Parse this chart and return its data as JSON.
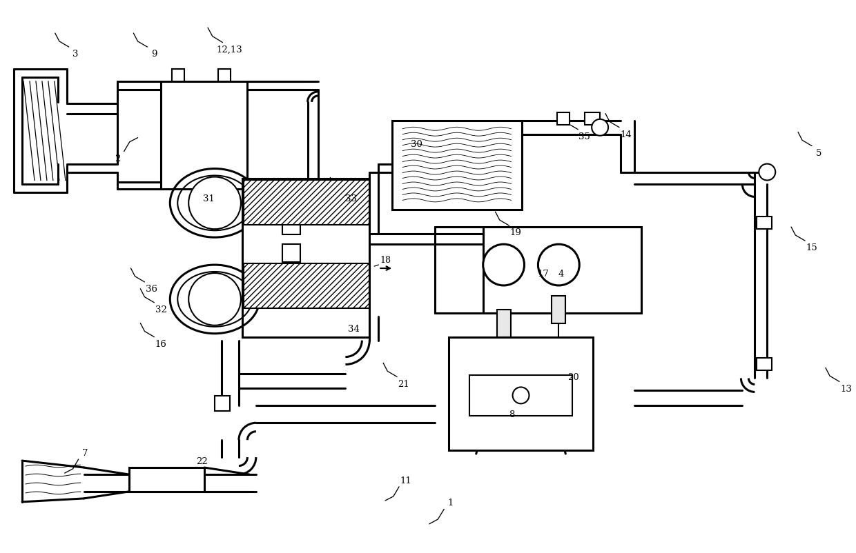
{
  "bg_color": "#ffffff",
  "line_color": "#000000",
  "lw": 1.5,
  "lw2": 2.2,
  "label_configs": {
    "3": [
      78,
      48,
      315,
      28
    ],
    "9": [
      192,
      48,
      315,
      28
    ],
    "12,13": [
      300,
      40,
      315,
      30
    ],
    "2": [
      198,
      200,
      225,
      28
    ],
    "31": [
      272,
      258,
      315,
      28
    ],
    "36": [
      188,
      390,
      315,
      28
    ],
    "32": [
      202,
      420,
      315,
      28
    ],
    "16": [
      202,
      470,
      315,
      28
    ],
    "7": [
      92,
      688,
      45,
      28
    ],
    "22": [
      262,
      700,
      45,
      28
    ],
    "30": [
      572,
      178,
      315,
      30
    ],
    "33": [
      478,
      258,
      315,
      28
    ],
    "18": [
      530,
      388,
      180,
      28
    ],
    "34": [
      482,
      448,
      315,
      28
    ],
    "19": [
      718,
      308,
      315,
      28
    ],
    "17": [
      758,
      368,
      315,
      28
    ],
    "4": [
      788,
      372,
      315,
      22
    ],
    "35": [
      818,
      168,
      315,
      28
    ],
    "14": [
      878,
      165,
      315,
      28
    ],
    "5": [
      1158,
      192,
      315,
      28
    ],
    "15": [
      1148,
      330,
      315,
      28
    ],
    "13": [
      1198,
      535,
      315,
      28
    ],
    "21": [
      555,
      528,
      315,
      28
    ],
    "11": [
      558,
      728,
      45,
      28
    ],
    "8": [
      712,
      572,
      315,
      28
    ],
    "20": [
      802,
      518,
      315,
      28
    ],
    "1": [
      622,
      762,
      45,
      30
    ]
  }
}
